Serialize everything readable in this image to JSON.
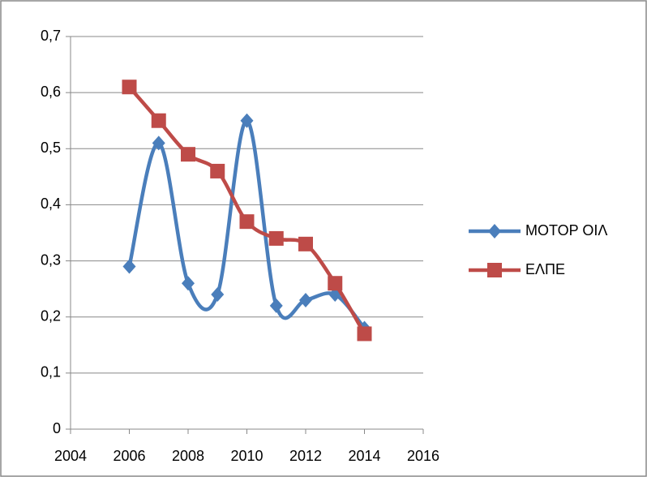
{
  "chart_data": {
    "type": "scatter-smooth",
    "xlim": [
      2004,
      2016
    ],
    "xticks": [
      2004,
      2006,
      2008,
      2010,
      2012,
      2014,
      2016
    ],
    "ylim": [
      0,
      0.7
    ],
    "yticks": [
      0,
      {
        "value": 0.1,
        "label": "0,1"
      },
      {
        "value": 0.2,
        "label": "0,2"
      },
      {
        "value": 0.3,
        "label": "0,3"
      },
      {
        "value": 0.4,
        "label": "0,4"
      },
      {
        "value": 0.5,
        "label": "0,5"
      },
      {
        "value": 0.6,
        "label": "0,6"
      },
      {
        "value": 0.7,
        "label": "0,7"
      }
    ],
    "grid": true,
    "legend": "right",
    "x": [
      2006,
      2007,
      2008,
      2009,
      2010,
      2011,
      2012,
      2013,
      2014
    ],
    "series": [
      {
        "name": "ΜΟΤΟΡ ΟΙΛ",
        "color": "#4a7ebb",
        "marker": "diamond",
        "values": [
          0.29,
          0.51,
          0.26,
          0.24,
          0.55,
          0.22,
          0.23,
          0.24,
          0.18
        ]
      },
      {
        "name": "ΕΛΠΕ",
        "color": "#be4b48",
        "marker": "square",
        "values": [
          0.61,
          0.55,
          0.49,
          0.46,
          0.37,
          0.34,
          0.33,
          0.26,
          0.17
        ]
      }
    ]
  }
}
